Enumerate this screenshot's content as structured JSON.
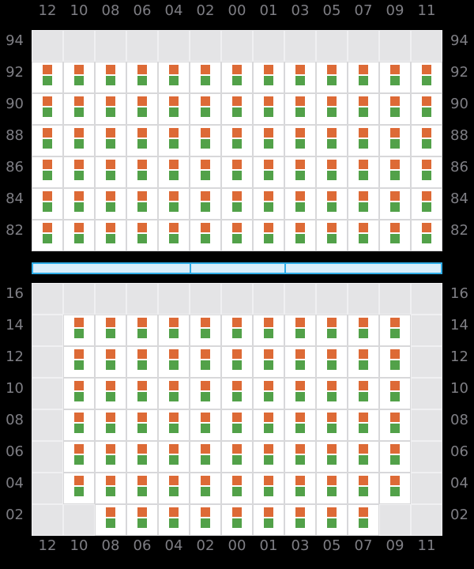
{
  "colors": {
    "background": "#000000",
    "label": "#7e7e84",
    "orange": "#dd6a36",
    "green": "#52a149",
    "cellEmpty": "#e4e4e6",
    "cellFilled": "#ffffff",
    "gridLineEmpty": "#f0f0f2",
    "gridLineFilled": "#d8d8da",
    "scrollbarFill": "#d9edf9",
    "scrollbarBorder": "#2face6"
  },
  "chart_data": {
    "type": "heatmap",
    "columns": [
      "12",
      "10",
      "08",
      "06",
      "04",
      "02",
      "00",
      "01",
      "03",
      "05",
      "07",
      "09",
      "11"
    ],
    "axis_positions": [
      "top",
      "bottom"
    ],
    "cell_marks": [
      "orange",
      "green"
    ],
    "top_panel": {
      "row_labels_sides": [
        "left",
        "right"
      ],
      "rows": [
        {
          "label": "94",
          "cells": [
            0,
            0,
            0,
            0,
            0,
            0,
            0,
            0,
            0,
            0,
            0,
            0,
            0
          ]
        },
        {
          "label": "92",
          "cells": [
            1,
            1,
            1,
            1,
            1,
            1,
            1,
            1,
            1,
            1,
            1,
            1,
            1
          ]
        },
        {
          "label": "90",
          "cells": [
            1,
            1,
            1,
            1,
            1,
            1,
            1,
            1,
            1,
            1,
            1,
            1,
            1
          ]
        },
        {
          "label": "88",
          "cells": [
            1,
            1,
            1,
            1,
            1,
            1,
            1,
            1,
            1,
            1,
            1,
            1,
            1
          ]
        },
        {
          "label": "86",
          "cells": [
            1,
            1,
            1,
            1,
            1,
            1,
            1,
            1,
            1,
            1,
            1,
            1,
            1
          ]
        },
        {
          "label": "84",
          "cells": [
            1,
            1,
            1,
            1,
            1,
            1,
            1,
            1,
            1,
            1,
            1,
            1,
            1
          ]
        },
        {
          "label": "82",
          "cells": [
            1,
            1,
            1,
            1,
            1,
            1,
            1,
            1,
            1,
            1,
            1,
            1,
            1
          ]
        }
      ]
    },
    "bottom_panel": {
      "row_labels_sides": [
        "left",
        "right"
      ],
      "rows": [
        {
          "label": "16",
          "cells": [
            0,
            0,
            0,
            0,
            0,
            0,
            0,
            0,
            0,
            0,
            0,
            0,
            0
          ]
        },
        {
          "label": "14",
          "cells": [
            0,
            1,
            1,
            1,
            1,
            1,
            1,
            1,
            1,
            1,
            1,
            1,
            0
          ]
        },
        {
          "label": "12",
          "cells": [
            0,
            1,
            1,
            1,
            1,
            1,
            1,
            1,
            1,
            1,
            1,
            1,
            0
          ]
        },
        {
          "label": "10",
          "cells": [
            0,
            1,
            1,
            1,
            1,
            1,
            1,
            1,
            1,
            1,
            1,
            1,
            0
          ]
        },
        {
          "label": "08",
          "cells": [
            0,
            1,
            1,
            1,
            1,
            1,
            1,
            1,
            1,
            1,
            1,
            1,
            0
          ]
        },
        {
          "label": "06",
          "cells": [
            0,
            1,
            1,
            1,
            1,
            1,
            1,
            1,
            1,
            1,
            1,
            1,
            0
          ]
        },
        {
          "label": "04",
          "cells": [
            0,
            1,
            1,
            1,
            1,
            1,
            1,
            1,
            1,
            1,
            1,
            1,
            0
          ]
        },
        {
          "label": "02",
          "cells": [
            0,
            0,
            1,
            1,
            1,
            1,
            1,
            1,
            1,
            1,
            1,
            0,
            0
          ]
        }
      ]
    },
    "scrollbar": {
      "segment_count": 3
    }
  }
}
